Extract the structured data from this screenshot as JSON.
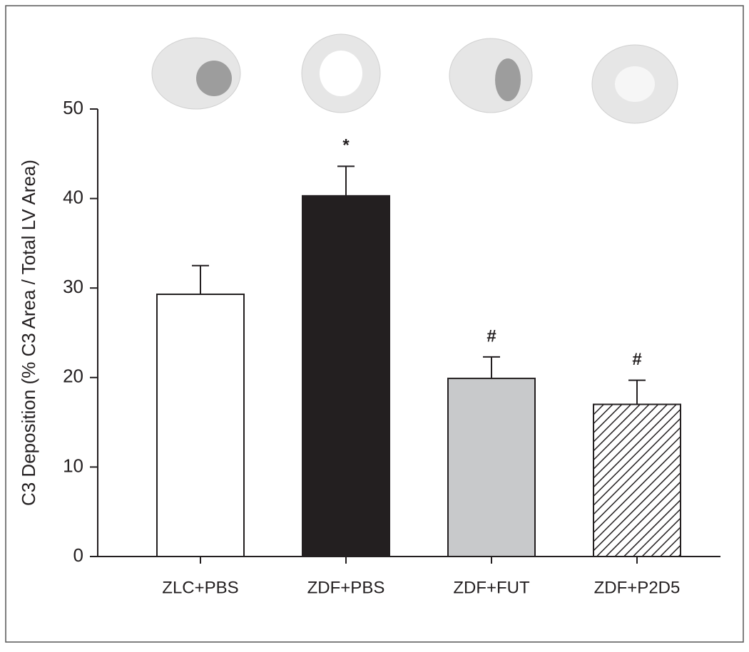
{
  "chart_data": {
    "type": "bar",
    "y_label": "C3 Deposition (% C3 Area / Total LV Area)",
    "categories": [
      "ZLC+PBS",
      "ZDF+PBS",
      "ZDF+FUT",
      "ZDF+P2D5"
    ],
    "values": [
      29.3,
      40.3,
      19.9,
      17.0
    ],
    "errors": [
      3.2,
      3.3,
      2.4,
      2.7
    ],
    "colors": [
      "#ffffff",
      "#231f20",
      "#c8c9cb",
      "#ffffff"
    ],
    "hatch": [
      false,
      false,
      false,
      true
    ],
    "annotations": [
      {
        "x": "ZDF+PBS",
        "text": "*"
      },
      {
        "x": "ZDF+FUT",
        "text": "#"
      },
      {
        "x": "ZDF+P2D5",
        "text": "#"
      }
    ],
    "ylim": [
      0,
      50
    ],
    "yticks": [
      0,
      10,
      20,
      30,
      40,
      50
    ],
    "grid": false
  }
}
